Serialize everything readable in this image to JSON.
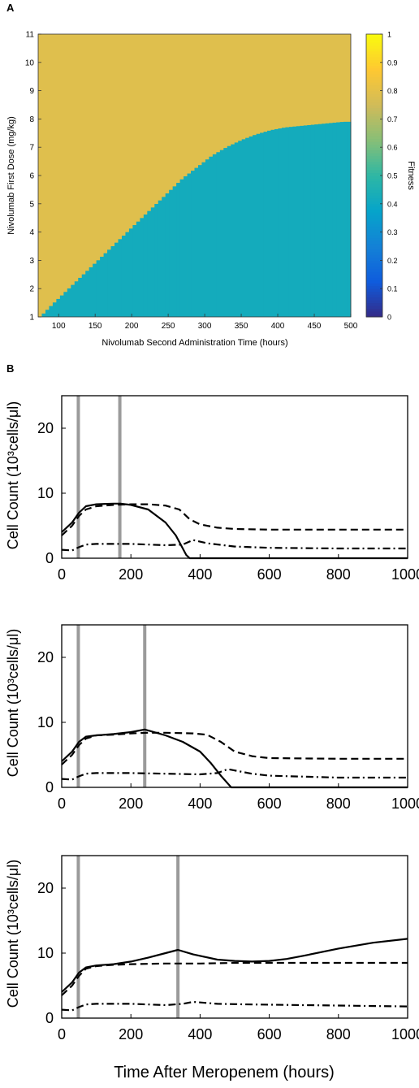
{
  "panel_labels": [
    "A",
    "B"
  ],
  "chart_data": [
    {
      "type": "heatmap",
      "panel": "A",
      "title": "",
      "xlabel": "Nivolumab Second Administration Time (hours)",
      "ylabel": "Nivolumab First Dose (mg/kg)",
      "xlim": [
        72,
        500
      ],
      "ylim": [
        1,
        11
      ],
      "x_ticks": [
        100,
        150,
        200,
        250,
        300,
        350,
        400,
        450,
        500
      ],
      "y_ticks": [
        1,
        2,
        3,
        4,
        5,
        6,
        7,
        8,
        9,
        10,
        11
      ],
      "colorbar": {
        "label": "Fitness",
        "range": [
          0,
          1
        ],
        "ticks": [
          0,
          0.1,
          0.2,
          0.3,
          0.4,
          0.5,
          0.6,
          0.7,
          0.8,
          0.9,
          1
        ],
        "colormap": [
          "#352a87",
          "#0f5cdd",
          "#1481d6",
          "#06a4ca",
          "#2eb7a4",
          "#87bf77",
          "#d1bb59",
          "#fec832",
          "#f9fb0e"
        ]
      },
      "regions": {
        "high_fitness_value": 0.79,
        "low_fitness_value": 0.42,
        "boundary_x": [
          75,
          90,
          110,
          130,
          150,
          170,
          190,
          210,
          230,
          250,
          270,
          290,
          310,
          330,
          350,
          370,
          390,
          410,
          430,
          450,
          470,
          490,
          500
        ],
        "boundary_y": [
          1.0,
          1.4,
          1.9,
          2.4,
          2.9,
          3.4,
          3.9,
          4.4,
          4.9,
          5.4,
          5.9,
          6.3,
          6.7,
          7.0,
          7.25,
          7.45,
          7.6,
          7.7,
          7.75,
          7.8,
          7.85,
          7.9,
          7.9
        ]
      }
    },
    {
      "type": "line",
      "panel": "B",
      "xlabel": "",
      "ylabel": "Cell Count (10³cells/μl)",
      "xlim": [
        0,
        1000
      ],
      "ylim": [
        0,
        25
      ],
      "x_ticks": [
        0,
        200,
        400,
        600,
        800,
        1000
      ],
      "y_ticks": [
        0,
        10,
        20
      ],
      "vlines": [
        48,
        168
      ],
      "series": [
        {
          "style": "solid",
          "x": [
            0,
            30,
            50,
            70,
            100,
            150,
            170,
            200,
            250,
            300,
            330,
            350,
            360,
            370,
            1000
          ],
          "y": [
            4,
            5.5,
            7,
            8,
            8.3,
            8.4,
            8.4,
            8.2,
            7.5,
            5.5,
            3.5,
            1.5,
            0.5,
            0,
            0
          ]
        },
        {
          "style": "dashed",
          "x": [
            0,
            30,
            50,
            70,
            100,
            150,
            200,
            250,
            300,
            340,
            370,
            400,
            450,
            500,
            600,
            800,
            1000
          ],
          "y": [
            3.5,
            5,
            6.5,
            7.5,
            8,
            8.2,
            8.3,
            8.3,
            8.1,
            7.5,
            6,
            5.2,
            4.7,
            4.5,
            4.4,
            4.4,
            4.4
          ]
        },
        {
          "style": "dashdot",
          "x": [
            0,
            30,
            50,
            70,
            100,
            200,
            300,
            350,
            380,
            420,
            500,
            600,
            800,
            1000
          ],
          "y": [
            1.3,
            1.2,
            1.7,
            2.1,
            2.2,
            2.2,
            2,
            2.1,
            2.8,
            2.3,
            1.8,
            1.6,
            1.5,
            1.5
          ]
        }
      ]
    },
    {
      "type": "line",
      "panel": "B",
      "xlabel": "",
      "ylabel": "Cell Count (10³cells/μl)",
      "xlim": [
        0,
        1000
      ],
      "ylim": [
        0,
        25
      ],
      "x_ticks": [
        0,
        200,
        400,
        600,
        800,
        1000
      ],
      "y_ticks": [
        0,
        10,
        20
      ],
      "vlines": [
        48,
        240
      ],
      "series": [
        {
          "style": "solid",
          "x": [
            0,
            30,
            50,
            70,
            100,
            150,
            200,
            240,
            260,
            300,
            350,
            400,
            430,
            460,
            480,
            490,
            1000
          ],
          "y": [
            4,
            5.5,
            7,
            7.8,
            8,
            8.2,
            8.5,
            8.9,
            8.6,
            8,
            7,
            5.5,
            3.8,
            1.8,
            0.6,
            0,
            0
          ]
        },
        {
          "style": "dashed",
          "x": [
            0,
            30,
            50,
            70,
            100,
            150,
            200,
            250,
            300,
            380,
            420,
            460,
            500,
            550,
            600,
            800,
            1000
          ],
          "y": [
            3.5,
            5,
            6.5,
            7.5,
            8,
            8.1,
            8.3,
            8.4,
            8.4,
            8.3,
            8.1,
            7,
            5.5,
            4.8,
            4.5,
            4.4,
            4.4
          ]
        },
        {
          "style": "dashdot",
          "x": [
            0,
            30,
            50,
            70,
            100,
            200,
            300,
            400,
            450,
            480,
            500,
            550,
            600,
            800,
            1000
          ],
          "y": [
            1.3,
            1.2,
            1.7,
            2.1,
            2.2,
            2.2,
            2.1,
            2,
            2.2,
            2.8,
            2.6,
            2.1,
            1.8,
            1.5,
            1.5
          ]
        }
      ]
    },
    {
      "type": "line",
      "panel": "B",
      "xlabel": "Time After Meropenem (hours)",
      "ylabel": "Cell Count (10³cells/μl)",
      "xlim": [
        0,
        1000
      ],
      "ylim": [
        0,
        25
      ],
      "x_ticks": [
        0,
        200,
        400,
        600,
        800,
        1000
      ],
      "y_ticks": [
        0,
        10,
        20
      ],
      "vlines": [
        48,
        336
      ],
      "series": [
        {
          "style": "solid",
          "x": [
            0,
            30,
            50,
            70,
            100,
            150,
            200,
            250,
            300,
            336,
            380,
            450,
            500,
            550,
            600,
            650,
            700,
            800,
            900,
            1000
          ],
          "y": [
            4,
            5.5,
            7,
            7.8,
            8.1,
            8.3,
            8.7,
            9.3,
            10,
            10.5,
            9.8,
            9,
            8.8,
            8.7,
            8.8,
            9.1,
            9.6,
            10.7,
            11.6,
            12.2
          ]
        },
        {
          "style": "dashed",
          "x": [
            0,
            30,
            50,
            70,
            100,
            150,
            200,
            300,
            400,
            500,
            600,
            800,
            1000
          ],
          "y": [
            3.5,
            5,
            6.5,
            7.6,
            8,
            8.2,
            8.3,
            8.4,
            8.4,
            8.5,
            8.5,
            8.5,
            8.5
          ]
        },
        {
          "style": "dashdot",
          "x": [
            0,
            30,
            50,
            70,
            100,
            200,
            300,
            350,
            380,
            450,
            550,
            700,
            850,
            1000
          ],
          "y": [
            1.3,
            1.2,
            1.7,
            2.1,
            2.2,
            2.2,
            2,
            2.2,
            2.5,
            2.2,
            2.1,
            2,
            1.9,
            1.8
          ]
        }
      ]
    }
  ]
}
